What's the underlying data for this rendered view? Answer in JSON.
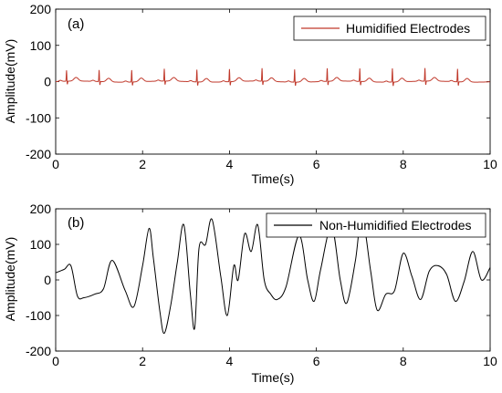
{
  "chart_data": [
    {
      "type": "line",
      "panel_label": "(a)",
      "xlabel": "Time(s)",
      "ylabel": "Amplitude(mV)",
      "xlim": [
        0,
        10
      ],
      "ylim": [
        -200,
        200
      ],
      "xticks": [
        0,
        2,
        4,
        6,
        8,
        10
      ],
      "yticks": [
        200,
        100,
        0,
        -100,
        -200
      ],
      "legend_position": "top-right",
      "grid": false,
      "series": [
        {
          "name": "Humidified Electrodes",
          "color": "#c0392b",
          "baseline": 0,
          "r_peak_times": [
            0.25,
            1.0,
            1.75,
            2.5,
            3.25,
            4.0,
            4.75,
            5.5,
            6.25,
            7.0,
            7.75,
            8.5,
            9.25
          ],
          "r_peak_amplitudes": [
            30,
            32,
            33,
            34,
            34,
            35,
            36,
            35,
            36,
            36,
            38,
            36,
            36
          ],
          "t_wave_amplitude": 10
        }
      ]
    },
    {
      "type": "line",
      "panel_label": "(b)",
      "xlabel": "Time(s)",
      "ylabel": "Amplitude(mV)",
      "xlim": [
        0,
        10
      ],
      "ylim": [
        -200,
        200
      ],
      "xticks": [
        0,
        2,
        4,
        6,
        8,
        10
      ],
      "yticks": [
        200,
        100,
        0,
        -100,
        -200
      ],
      "legend_position": "top-right",
      "grid": false,
      "series": [
        {
          "name": "Non-Humidified Electrodes",
          "color": "#000000",
          "x": [
            0,
            0.2,
            0.35,
            0.5,
            0.65,
            0.9,
            1.1,
            1.3,
            1.6,
            1.8,
            2.0,
            2.15,
            2.25,
            2.4,
            2.5,
            2.65,
            2.8,
            2.95,
            3.1,
            3.2,
            3.3,
            3.45,
            3.6,
            3.8,
            3.95,
            4.1,
            4.2,
            4.35,
            4.5,
            4.65,
            4.8,
            4.95,
            5.1,
            5.3,
            5.6,
            5.8,
            5.95,
            6.1,
            6.35,
            6.55,
            6.7,
            6.9,
            7.05,
            7.25,
            7.4,
            7.6,
            7.8,
            8.0,
            8.2,
            8.4,
            8.6,
            8.8,
            9.0,
            9.2,
            9.4,
            9.6,
            9.8,
            10
          ],
          "y": [
            20,
            30,
            40,
            -45,
            -50,
            -40,
            -25,
            55,
            -30,
            -75,
            40,
            145,
            60,
            -90,
            -150,
            -70,
            50,
            155,
            -40,
            -135,
            90,
            100,
            170,
            10,
            -100,
            40,
            0,
            130,
            80,
            155,
            0,
            -40,
            -55,
            -20,
            125,
            0,
            -60,
            30,
            150,
            0,
            -65,
            55,
            180,
            25,
            -85,
            -40,
            -30,
            75,
            10,
            -55,
            25,
            40,
            15,
            -60,
            -5,
            80,
            0,
            35
          ]
        }
      ]
    }
  ]
}
